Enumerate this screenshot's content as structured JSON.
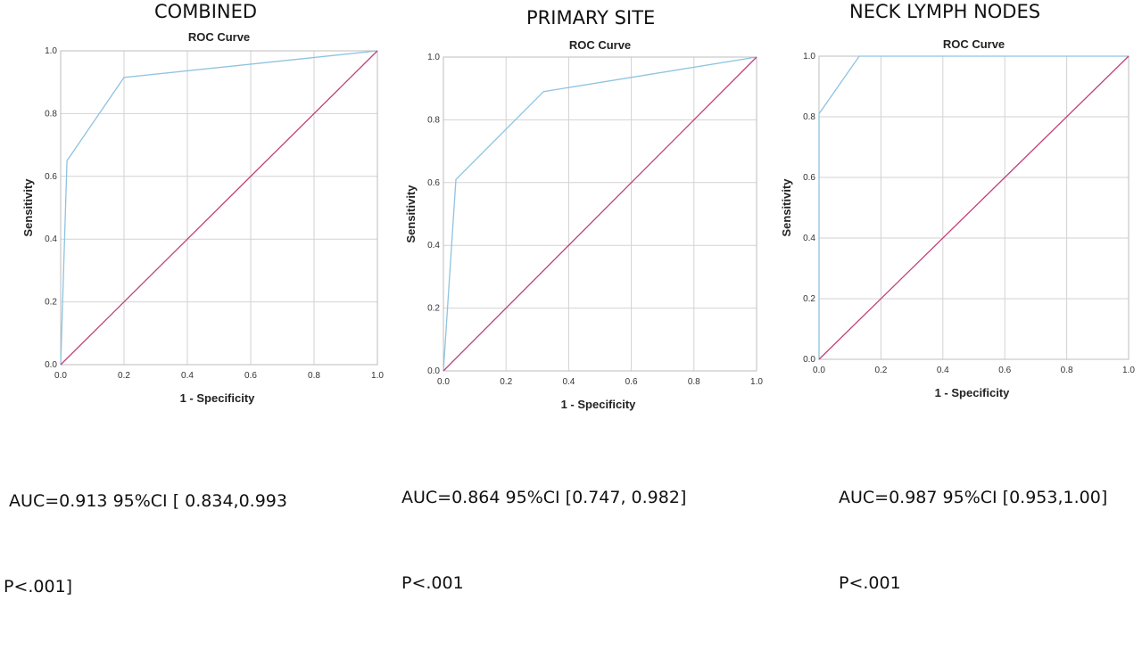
{
  "chart_data": [
    {
      "type": "line",
      "heading": "COMBINED",
      "title": "ROC Curve",
      "xlabel": "1 - Specificity",
      "ylabel": "Sensitivity",
      "xlim": [
        0,
        1
      ],
      "ylim": [
        0,
        1
      ],
      "ticks": [
        "0.0",
        "0.2",
        "0.4",
        "0.6",
        "0.8",
        "1.0"
      ],
      "grid": true,
      "series": [
        {
          "color": "#8fc3e0",
          "x": [
            0,
            0.02,
            0.2,
            1.0
          ],
          "y": [
            0,
            0.65,
            0.915,
            1.0
          ]
        },
        {
          "color": "#c0407a",
          "x": [
            0,
            1
          ],
          "y": [
            0,
            1
          ]
        }
      ],
      "stats_line1": " AUC=0.913 95%CI [ 0.834,0.993",
      "stats_line2": "P<.001]"
    },
    {
      "type": "line",
      "heading": "PRIMARY SITE",
      "title": "ROC Curve",
      "xlabel": "1 - Specificity",
      "ylabel": "Sensitivity",
      "xlim": [
        0,
        1
      ],
      "ylim": [
        0,
        1
      ],
      "ticks": [
        "0.0",
        "0.2",
        "0.4",
        "0.6",
        "0.8",
        "1.0"
      ],
      "grid": true,
      "series": [
        {
          "color": "#8fc3e0",
          "x": [
            0,
            0.04,
            0.32,
            1.0
          ],
          "y": [
            0,
            0.61,
            0.89,
            1.0
          ]
        },
        {
          "color": "#c0407a",
          "x": [
            0,
            1
          ],
          "y": [
            0,
            1
          ]
        }
      ],
      "stats_line1": "AUC=0.864 95%CI [0.747, 0.982]",
      "stats_line2": "P<.001"
    },
    {
      "type": "line",
      "heading": "NECK LYMPH NODES",
      "title": "ROC Curve",
      "xlabel": "1 - Specificity",
      "ylabel": "Sensitivity",
      "xlim": [
        0,
        1
      ],
      "ylim": [
        0,
        1
      ],
      "ticks": [
        "0.0",
        "0.2",
        "0.4",
        "0.6",
        "0.8",
        "1.0"
      ],
      "grid": true,
      "series": [
        {
          "color": "#8fc3e0",
          "x": [
            0,
            0,
            0.13,
            1.0
          ],
          "y": [
            0,
            0.81,
            1.0,
            1.0
          ]
        },
        {
          "color": "#c0407a",
          "x": [
            0,
            1
          ],
          "y": [
            0,
            1
          ]
        }
      ],
      "stats_line1": "AUC=0.987 95%CI [0.953,1.00]",
      "stats_line2": "P<.001"
    }
  ]
}
